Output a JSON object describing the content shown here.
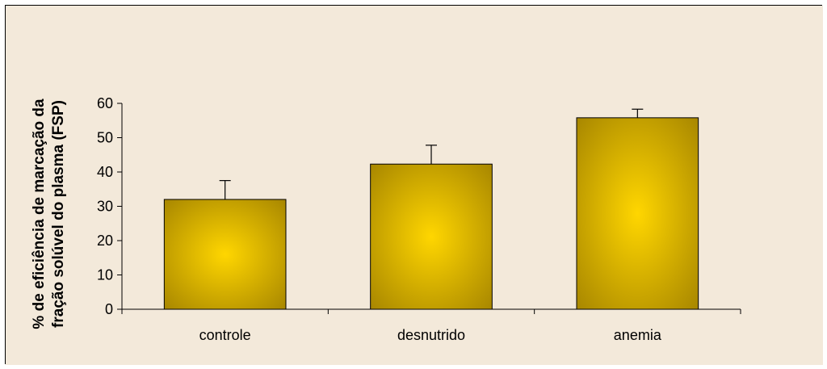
{
  "chart_data": {
    "type": "bar",
    "categories": [
      "controle",
      "desnutrido",
      "anemia"
    ],
    "values": [
      32,
      42.3,
      55.8
    ],
    "error_bars": [
      5.5,
      5.5,
      2.5
    ],
    "ylim": [
      0,
      60
    ],
    "yticks": [
      0,
      10,
      20,
      30,
      40,
      50,
      60
    ],
    "ylabel_lines": [
      "% de eficiência de marcação da",
      "fração solúvel do plasma (FSP)"
    ],
    "xlabel": "",
    "title": "",
    "grid": false,
    "legend": "none",
    "colors": {
      "background": "#F3E9DA",
      "bar_center": "#FFD600",
      "bar_edge": "#A88700",
      "axis": "#000000"
    }
  }
}
